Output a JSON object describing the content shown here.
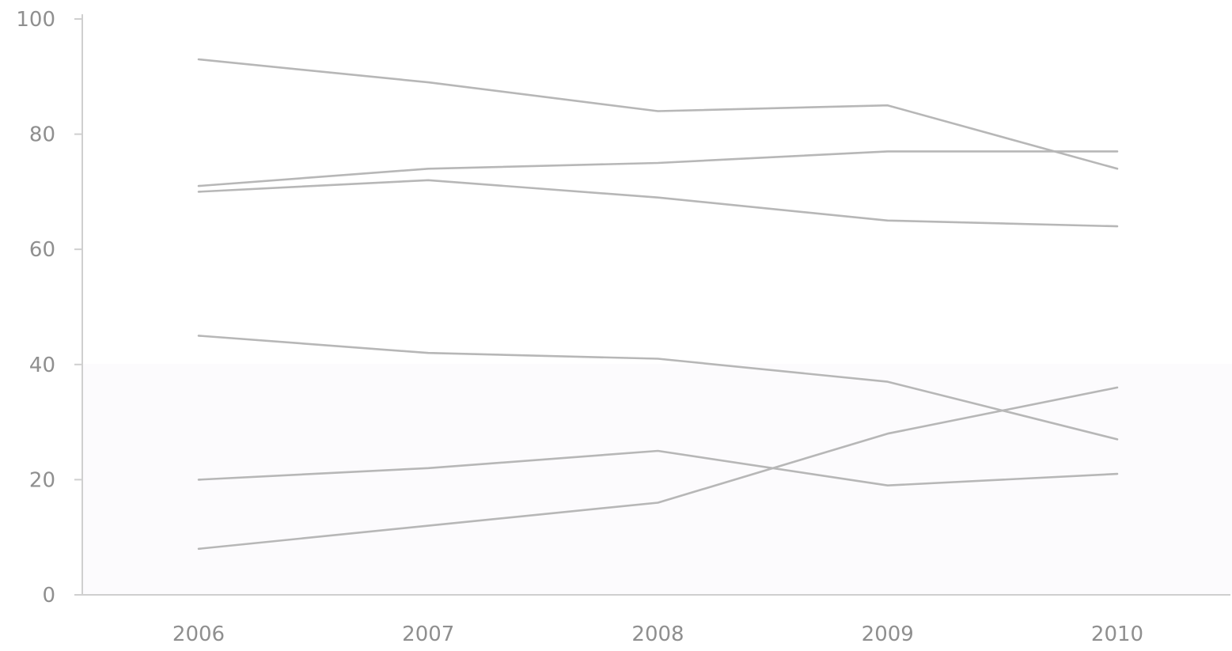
{
  "chart_data": {
    "type": "line",
    "title": "",
    "xlabel": "",
    "ylabel": "",
    "x": [
      "2006",
      "2007",
      "2008",
      "2009",
      "2010"
    ],
    "ylim": [
      0,
      100
    ],
    "yticks": [
      "0",
      "20",
      "40",
      "60",
      "80",
      "100"
    ],
    "grid": false,
    "line_color": "#b7b7b7",
    "axis_color": "#cfcfcf",
    "tick_label_color": "#8f8f8f",
    "series": [
      {
        "values": [
          93,
          89,
          84,
          85,
          74
        ]
      },
      {
        "values": [
          71,
          74,
          75,
          77,
          77
        ]
      },
      {
        "values": [
          70,
          72,
          69,
          65,
          64
        ]
      },
      {
        "values": [
          45,
          42,
          41,
          37,
          27
        ]
      },
      {
        "values": [
          20,
          22,
          25,
          19,
          21
        ]
      },
      {
        "values": [
          8,
          12,
          16,
          28,
          36
        ]
      }
    ]
  }
}
